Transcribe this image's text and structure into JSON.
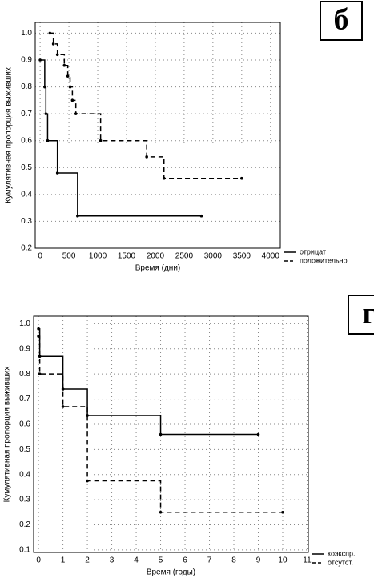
{
  "chart_data": [
    {
      "type": "step",
      "panel_label": "б",
      "ylabel": "Кумулятивная пропорция выживших",
      "xlabel": "Время (дни)",
      "xlim": [
        -85,
        4170
      ],
      "ylim": [
        0.2,
        1.04
      ],
      "xticks": [
        0,
        500,
        1000,
        1500,
        2000,
        2500,
        3000,
        3500,
        4000
      ],
      "yticks": [
        0.2,
        0.3,
        0.4,
        0.5,
        0.6,
        0.7,
        0.8,
        0.9,
        {
          "value": 1,
          "label": "1.0"
        }
      ],
      "grid": true,
      "series": [
        {
          "name": "отрицат",
          "color": "#000000",
          "dashed": false,
          "x": [
            0,
            80,
            100,
            130,
            300,
            650,
            2800
          ],
          "values": [
            0.9,
            0.8,
            0.7,
            0.6,
            0.48,
            0.32,
            0.32
          ]
        },
        {
          "name": "положительно",
          "color": "#000000",
          "dashed": true,
          "x": [
            170,
            230,
            300,
            420,
            480,
            520,
            560,
            620,
            1050,
            1850,
            2150,
            3500
          ],
          "values": [
            1.0,
            0.96,
            0.92,
            0.88,
            0.84,
            0.8,
            0.75,
            0.7,
            0.6,
            0.54,
            0.46,
            0.46
          ]
        }
      ]
    },
    {
      "type": "step",
      "panel_label": "г",
      "ylabel": "Кумулятивная пропорция выживших",
      "xlabel": "Время (годы)",
      "xlim": [
        -0.2,
        11.05
      ],
      "ylim": [
        0.09,
        1.03
      ],
      "xticks": [
        0,
        1,
        2,
        3,
        4,
        5,
        6,
        7,
        8,
        9,
        10,
        11
      ],
      "yticks": [
        0.1,
        0.2,
        0.3,
        0.4,
        0.5,
        0.6,
        0.7,
        0.8,
        0.9,
        {
          "value": 1,
          "label": "1.0"
        }
      ],
      "grid": true,
      "series": [
        {
          "name": "коэкспр.",
          "color": "#000000",
          "dashed": false,
          "x": [
            0,
            0.05,
            1,
            2,
            5,
            9
          ],
          "values": [
            0.98,
            0.87,
            0.74,
            0.635,
            0.56,
            0.56
          ]
        },
        {
          "name": "отсутст.",
          "color": "#000000",
          "dashed": true,
          "x": [
            0,
            0.05,
            1,
            2,
            5,
            10
          ],
          "values": [
            0.95,
            0.8,
            0.67,
            0.375,
            0.25,
            0.25
          ]
        }
      ]
    }
  ]
}
